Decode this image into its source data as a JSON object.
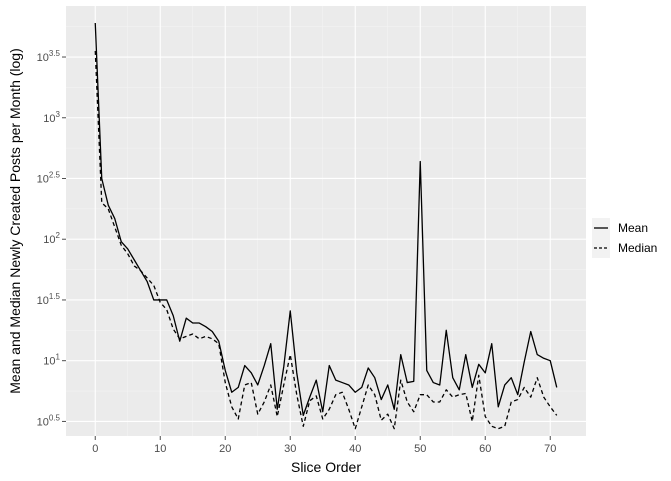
{
  "chart_data": {
    "type": "line",
    "xlabel": "Slice Order",
    "ylabel": "Mean and Median Newly Created Posts per Month (log)",
    "xlim": [
      -4.5,
      75.5
    ],
    "ylim_log10": [
      0.38,
      3.92
    ],
    "y_scale": "log10",
    "x_ticks": [
      0,
      10,
      20,
      30,
      40,
      50,
      60,
      70
    ],
    "y_ticks": [
      {
        "exp": 0.5,
        "base": "10",
        "sup": "0.5"
      },
      {
        "exp": 1.0,
        "base": "10",
        "sup": "1"
      },
      {
        "exp": 1.5,
        "base": "10",
        "sup": "1.5"
      },
      {
        "exp": 2.0,
        "base": "10",
        "sup": "2"
      },
      {
        "exp": 2.5,
        "base": "10",
        "sup": "2.5"
      },
      {
        "exp": 3.0,
        "base": "10",
        "sup": "3"
      },
      {
        "exp": 3.5,
        "base": "10",
        "sup": "3.5"
      }
    ],
    "grid": true,
    "legend_position": "right",
    "x": [
      0,
      1,
      2,
      3,
      4,
      5,
      6,
      7,
      8,
      9,
      10,
      11,
      12,
      13,
      14,
      15,
      16,
      17,
      18,
      19,
      20,
      21,
      22,
      23,
      24,
      25,
      26,
      27,
      28,
      29,
      30,
      31,
      32,
      33,
      34,
      35,
      36,
      37,
      38,
      39,
      40,
      41,
      42,
      43,
      44,
      45,
      46,
      47,
      48,
      49,
      50,
      51,
      52,
      53,
      54,
      55,
      56,
      57,
      58,
      59,
      60,
      61,
      62,
      63,
      64,
      65,
      66,
      67,
      68,
      69,
      70,
      71
    ],
    "series": [
      {
        "name": "Mean",
        "dash": "solid",
        "log10_values": [
          3.78,
          2.5,
          2.28,
          2.17,
          1.98,
          1.92,
          1.83,
          1.74,
          1.65,
          1.5,
          1.5,
          1.5,
          1.37,
          1.16,
          1.35,
          1.31,
          1.31,
          1.28,
          1.24,
          1.16,
          0.92,
          0.74,
          0.78,
          0.96,
          0.9,
          0.8,
          0.96,
          1.14,
          0.6,
          0.95,
          1.41,
          0.9,
          0.55,
          0.7,
          0.84,
          0.58,
          0.96,
          0.84,
          0.82,
          0.8,
          0.74,
          0.78,
          0.94,
          0.86,
          0.68,
          0.8,
          0.6,
          1.05,
          0.82,
          0.83,
          2.64,
          0.92,
          0.82,
          0.8,
          1.25,
          0.86,
          0.76,
          1.05,
          0.78,
          0.97,
          0.9,
          1.14,
          0.62,
          0.8,
          0.86,
          0.72,
          0.99,
          1.24,
          1.05,
          1.02,
          1.0,
          0.78
        ]
      },
      {
        "name": "Median",
        "dash": "dashed",
        "log10_values": [
          3.55,
          2.3,
          2.25,
          2.1,
          1.95,
          1.88,
          1.78,
          1.74,
          1.68,
          1.62,
          1.48,
          1.42,
          1.26,
          1.18,
          1.2,
          1.22,
          1.18,
          1.2,
          1.18,
          1.14,
          0.82,
          0.62,
          0.52,
          0.8,
          0.82,
          0.56,
          0.66,
          0.8,
          0.54,
          0.8,
          1.05,
          0.72,
          0.46,
          0.67,
          0.71,
          0.52,
          0.6,
          0.72,
          0.74,
          0.6,
          0.44,
          0.62,
          0.8,
          0.72,
          0.51,
          0.56,
          0.44,
          0.84,
          0.66,
          0.58,
          0.72,
          0.72,
          0.66,
          0.66,
          0.76,
          0.7,
          0.72,
          0.73,
          0.5,
          0.88,
          0.54,
          0.46,
          0.44,
          0.46,
          0.66,
          0.68,
          0.78,
          0.7,
          0.86,
          0.7,
          0.62,
          0.55
        ]
      }
    ]
  }
}
